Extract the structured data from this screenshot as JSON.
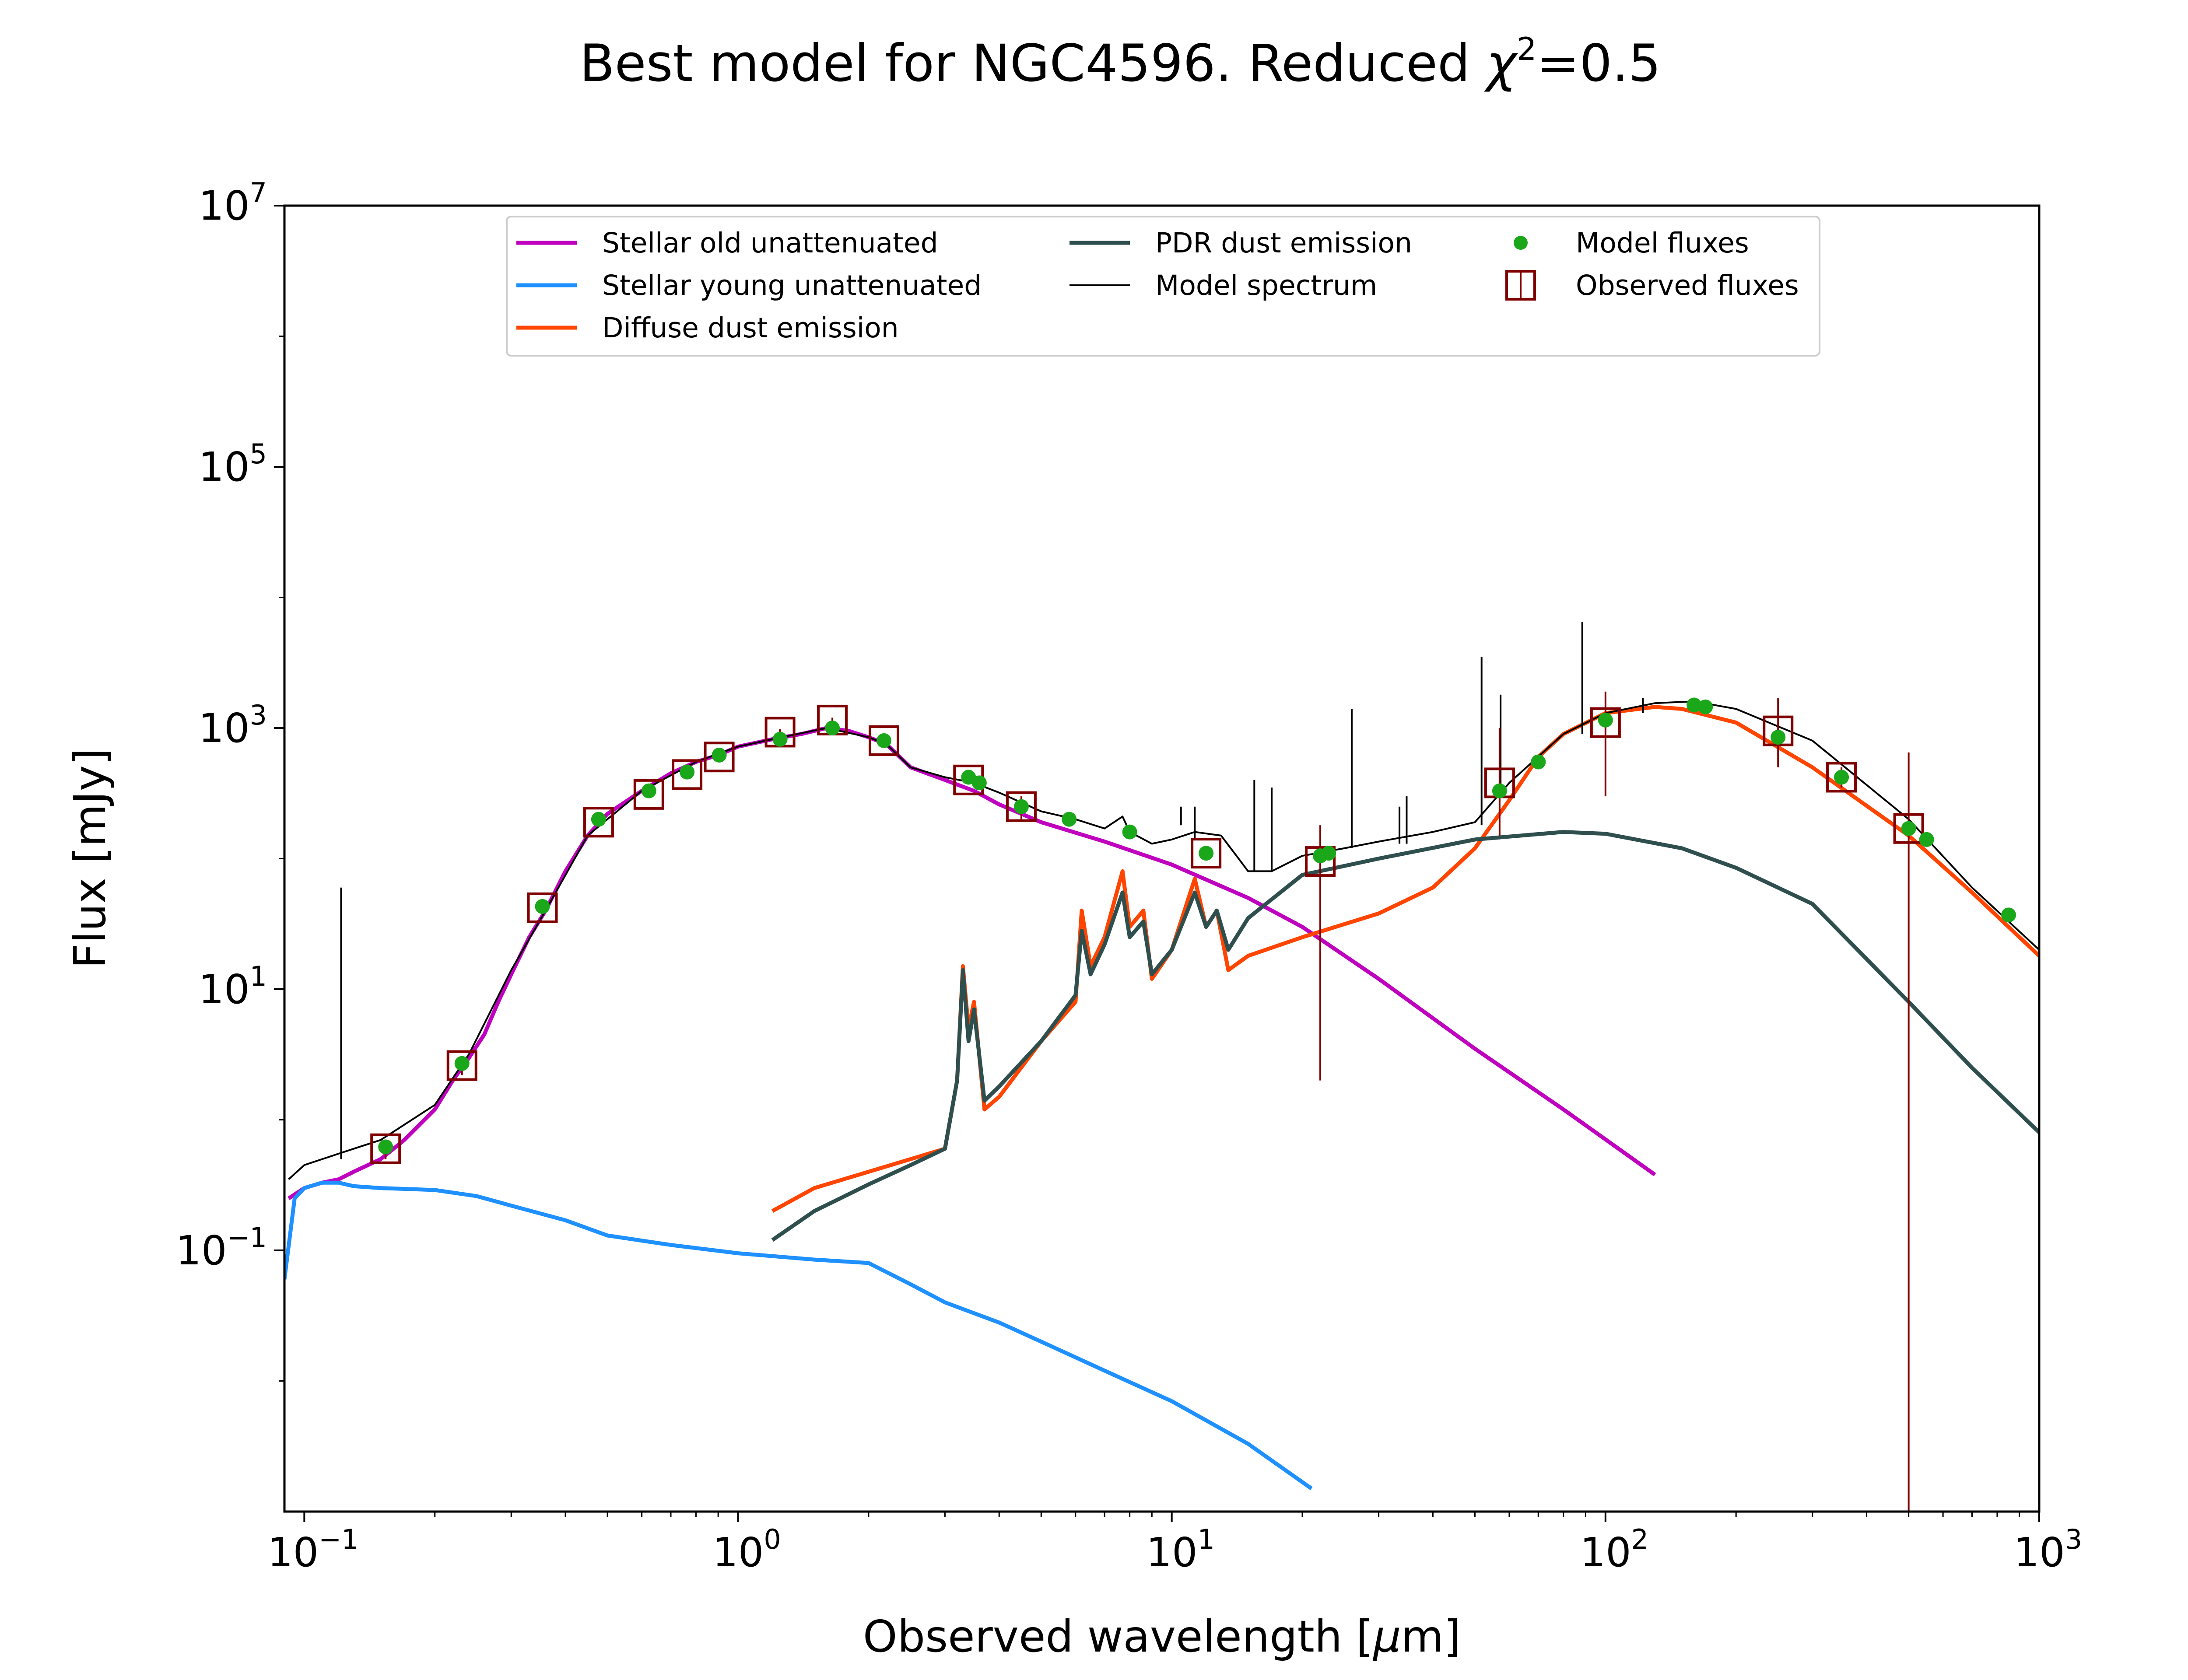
{
  "chart_data": {
    "type": "line",
    "title": "Best model for NGC4596. Reduced χ²=0.5",
    "title_parts": {
      "main": "Best model for NGC4596. Reduced ",
      "chi": "χ",
      "sup": "2",
      "tail": "=0.5"
    },
    "xlabel": "Observed wavelength [μm]",
    "xlabel_parts": {
      "pre": "Observed wavelength [",
      "mu": "μ",
      "post": "m]"
    },
    "ylabel": "Flux [mJy]",
    "x_scale": "log",
    "y_scale": "log",
    "xlim": [
      0.09,
      1000
    ],
    "ylim": [
      0.001,
      10000000
    ],
    "x_ticks": [
      {
        "value": 0.1,
        "base": "10",
        "exp": "−1"
      },
      {
        "value": 1,
        "base": "10",
        "exp": "0"
      },
      {
        "value": 10,
        "base": "10",
        "exp": "1"
      },
      {
        "value": 100,
        "base": "10",
        "exp": "2"
      },
      {
        "value": 1000,
        "base": "10",
        "exp": "3"
      }
    ],
    "y_ticks": [
      {
        "value": 0.1,
        "base": "10",
        "exp": "−1"
      },
      {
        "value": 10,
        "base": "10",
        "exp": "1"
      },
      {
        "value": 1000,
        "base": "10",
        "exp": "3"
      },
      {
        "value": 100000,
        "base": "10",
        "exp": "5"
      },
      {
        "value": 10000000,
        "base": "10",
        "exp": "7"
      }
    ],
    "legend_position": "upper-center",
    "legend": [
      {
        "label": "Stellar old unattenuated",
        "kind": "line",
        "color": "#bf00bf"
      },
      {
        "label": "Stellar young unattenuated",
        "kind": "line",
        "color": "#1e90ff"
      },
      {
        "label": "Diffuse dust emission",
        "kind": "line",
        "color": "#ff4500"
      },
      {
        "label": "PDR dust emission",
        "kind": "line",
        "color": "#2f4f4f"
      },
      {
        "label": "Model spectrum",
        "kind": "thin-line",
        "color": "#000000"
      },
      {
        "label": "Model fluxes",
        "kind": "dot",
        "color": "#1aa81a"
      },
      {
        "label": "Observed fluxes",
        "kind": "square",
        "color": "#800000"
      }
    ],
    "series": [
      {
        "name": "Stellar old unattenuated",
        "color": "#bf00bf",
        "x": [
          0.092,
          0.1,
          0.11,
          0.12,
          0.13,
          0.15,
          0.17,
          0.2,
          0.22,
          0.24,
          0.26,
          0.28,
          0.3,
          0.33,
          0.36,
          0.4,
          0.45,
          0.5,
          0.6,
          0.7,
          0.8,
          0.9,
          1.0,
          1.2,
          1.4,
          1.6,
          1.8,
          2.0,
          2.2,
          2.5,
          3.0,
          3.5,
          4.0,
          5.0,
          7.0,
          10,
          15,
          20,
          30,
          50,
          80,
          130
        ],
        "y": [
          0.25,
          0.3,
          0.33,
          0.35,
          0.4,
          0.5,
          0.7,
          1.2,
          2.0,
          3.0,
          4.5,
          8.0,
          13,
          25,
          40,
          80,
          150,
          220,
          330,
          450,
          550,
          620,
          720,
          820,
          900,
          1000,
          950,
          850,
          750,
          500,
          400,
          330,
          260,
          190,
          135,
          90,
          50,
          30,
          12,
          3.5,
          1.2,
          0.38
        ]
      },
      {
        "name": "Stellar young unattenuated",
        "color": "#1e90ff",
        "x": [
          0.09,
          0.095,
          0.1,
          0.11,
          0.12,
          0.13,
          0.15,
          0.2,
          0.25,
          0.3,
          0.4,
          0.5,
          0.7,
          1.0,
          1.5,
          2.0,
          2.5,
          3.0,
          4.0,
          5.0,
          7.0,
          10,
          15,
          21
        ],
        "y": [
          0.06,
          0.25,
          0.3,
          0.33,
          0.33,
          0.31,
          0.3,
          0.29,
          0.26,
          0.22,
          0.17,
          0.13,
          0.11,
          0.095,
          0.085,
          0.08,
          0.055,
          0.04,
          0.028,
          0.02,
          0.012,
          0.007,
          0.0033,
          0.0015
        ]
      },
      {
        "name": "Diffuse dust emission",
        "color": "#ff4500",
        "x": [
          1.2,
          1.5,
          2.0,
          2.5,
          3.0,
          3.2,
          3.3,
          3.4,
          3.5,
          3.7,
          4.0,
          5.0,
          6.0,
          6.2,
          6.5,
          7.0,
          7.7,
          8.0,
          8.6,
          9.0,
          10,
          11.3,
          12,
          12.7,
          13.5,
          15,
          20,
          30,
          40,
          50,
          60,
          70,
          80,
          100,
          130,
          150,
          200,
          300,
          500,
          700,
          1000
        ],
        "y": [
          0.2,
          0.3,
          0.4,
          0.5,
          0.6,
          2.0,
          15,
          5.0,
          8.0,
          1.2,
          1.5,
          4.0,
          8.0,
          40,
          15,
          25,
          80,
          30,
          40,
          12,
          20,
          70,
          30,
          40,
          14,
          18,
          25,
          38,
          60,
          120,
          280,
          600,
          900,
          1300,
          1450,
          1400,
          1100,
          500,
          150,
          55,
          18
        ]
      },
      {
        "name": "PDR dust emission",
        "color": "#2f4f4f",
        "x": [
          1.2,
          1.5,
          2.0,
          2.5,
          3.0,
          3.2,
          3.3,
          3.4,
          3.5,
          3.7,
          4.0,
          5.0,
          6.0,
          6.2,
          6.5,
          7.0,
          7.7,
          8.0,
          8.6,
          9.0,
          10,
          11.3,
          12,
          12.7,
          13.5,
          15,
          20,
          30,
          50,
          80,
          100,
          150,
          200,
          300,
          500,
          700,
          1000
        ],
        "y": [
          0.12,
          0.2,
          0.32,
          0.45,
          0.6,
          2.0,
          14,
          4.0,
          7.0,
          1.4,
          1.8,
          4.0,
          9.0,
          28,
          13,
          22,
          55,
          25,
          33,
          13,
          20,
          55,
          30,
          40,
          20,
          35,
          75,
          100,
          140,
          160,
          155,
          120,
          85,
          45,
          8,
          2.5,
          0.8
        ]
      },
      {
        "name": "Model spectrum",
        "color": "#000000",
        "thin": true,
        "x": [
          0.092,
          0.1,
          0.11,
          0.12,
          0.13,
          0.15,
          0.2,
          0.24,
          0.3,
          0.36,
          0.45,
          0.6,
          0.8,
          1.0,
          1.2,
          1.6,
          2.0,
          2.2,
          2.5,
          3.0,
          3.5,
          4.0,
          5.0,
          6.0,
          7.0,
          7.7,
          8.0,
          9.0,
          10,
          11.3,
          13,
          15,
          17,
          20,
          25,
          30,
          40,
          50,
          60,
          80,
          100,
          130,
          160,
          200,
          300,
          500,
          700,
          1000
        ],
        "y": [
          0.35,
          0.45,
          0.5,
          0.55,
          0.6,
          0.7,
          1.3,
          3.2,
          14,
          40,
          150,
          330,
          550,
          720,
          820,
          1000,
          850,
          750,
          500,
          420,
          380,
          320,
          230,
          200,
          170,
          210,
          160,
          130,
          140,
          160,
          150,
          80,
          80,
          105,
          120,
          135,
          160,
          190,
          380,
          900,
          1300,
          1550,
          1600,
          1400,
          800,
          200,
          60,
          20
        ]
      }
    ],
    "spikes": [
      {
        "x": 0.1216,
        "y0": 0.5,
        "y1": 60
      },
      {
        "x": 10.5,
        "y0": 180,
        "y1": 250
      },
      {
        "x": 11.3,
        "y0": 140,
        "y1": 250
      },
      {
        "x": 15.5,
        "y0": 80,
        "y1": 400
      },
      {
        "x": 17.0,
        "y0": 80,
        "y1": 350
      },
      {
        "x": 26.0,
        "y0": 120,
        "y1": 1400
      },
      {
        "x": 33.5,
        "y0": 130,
        "y1": 250
      },
      {
        "x": 34.8,
        "y0": 130,
        "y1": 300
      },
      {
        "x": 51.8,
        "y0": 180,
        "y1": 3500
      },
      {
        "x": 57.3,
        "y0": 300,
        "y1": 1800
      },
      {
        "x": 88.4,
        "y0": 900,
        "y1": 6500
      },
      {
        "x": 122,
        "y0": 1300,
        "y1": 1700
      }
    ],
    "model_fluxes": {
      "name": "Model fluxes",
      "color": "#1aa81a",
      "x": [
        0.154,
        0.231,
        0.354,
        0.477,
        0.623,
        0.763,
        0.905,
        1.25,
        1.65,
        2.17,
        3.4,
        3.6,
        4.5,
        5.8,
        8.0,
        12,
        22,
        23,
        57,
        70,
        100,
        160,
        170,
        250,
        350,
        500,
        550,
        850
      ],
      "y": [
        0.62,
        2.7,
        43,
        200,
        330,
        460,
        620,
        820,
        1000,
        800,
        420,
        380,
        250,
        200,
        160,
        110,
        105,
        110,
        330,
        550,
        1150,
        1500,
        1450,
        850,
        420,
        170,
        140,
        37
      ]
    },
    "observed_fluxes": {
      "name": "Observed fluxes",
      "color": "#800000",
      "points": [
        {
          "x": 0.154,
          "y": 0.6,
          "lo": 0.5,
          "hi": 0.7
        },
        {
          "x": 0.231,
          "y": 2.6,
          "lo": 2.2,
          "hi": 3.0
        },
        {
          "x": 0.354,
          "y": 42,
          "lo": 38,
          "hi": 46
        },
        {
          "x": 0.477,
          "y": 190,
          "lo": 175,
          "hi": 205
        },
        {
          "x": 0.623,
          "y": 310,
          "lo": 290,
          "hi": 330
        },
        {
          "x": 0.763,
          "y": 440,
          "lo": 420,
          "hi": 460
        },
        {
          "x": 0.905,
          "y": 600,
          "lo": 570,
          "hi": 630
        },
        {
          "x": 1.25,
          "y": 930,
          "lo": 880,
          "hi": 980
        },
        {
          "x": 1.65,
          "y": 1150,
          "lo": 1100,
          "hi": 1200
        },
        {
          "x": 2.17,
          "y": 800,
          "lo": 760,
          "hi": 840
        },
        {
          "x": 3.4,
          "y": 400,
          "lo": 380,
          "hi": 420
        },
        {
          "x": 4.5,
          "y": 250,
          "lo": 200,
          "hi": 300
        },
        {
          "x": 12,
          "y": 110,
          "lo": 100,
          "hi": 120
        },
        {
          "x": 22,
          "y": 95,
          "lo": 2,
          "hi": 180
        },
        {
          "x": 57,
          "y": 380,
          "lo": 150,
          "hi": 1000
        },
        {
          "x": 100,
          "y": 1100,
          "lo": 300,
          "hi": 1900
        },
        {
          "x": 250,
          "y": 950,
          "lo": 500,
          "hi": 1700
        },
        {
          "x": 350,
          "y": 420,
          "lo": 350,
          "hi": 500
        },
        {
          "x": 500,
          "y": 170,
          "lo": 0.001,
          "hi": 650
        }
      ]
    }
  }
}
